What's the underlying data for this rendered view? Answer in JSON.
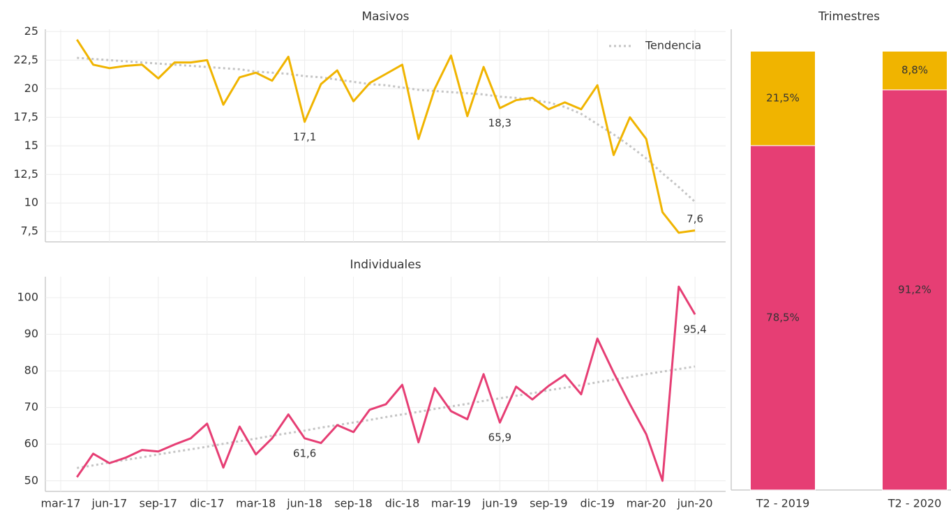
{
  "chart_data": [
    {
      "type": "line",
      "title": "Masivos",
      "ylim": [
        6.6,
        25.2
      ],
      "yticks": [
        {
          "value": 7.5,
          "label": "7,5"
        },
        10,
        {
          "value": 12.5,
          "label": "12,5"
        },
        15,
        {
          "value": 17.5,
          "label": "17,5"
        },
        20,
        {
          "value": 22.5,
          "label": "22,5"
        },
        25
      ],
      "grid": true,
      "legend": "upper right",
      "series": [
        {
          "name": "Tendencia",
          "color": "#c4c4c4",
          "style": "dotted",
          "values": [
            null,
            22.7,
            22.6,
            22.5,
            22.4,
            22.3,
            22.2,
            22.1,
            22.0,
            21.9,
            21.8,
            21.7,
            21.5,
            21.4,
            21.3,
            21.1,
            21.0,
            20.8,
            20.6,
            20.4,
            20.3,
            20.1,
            19.9,
            19.8,
            19.7,
            19.6,
            19.5,
            19.3,
            19.2,
            19.0,
            18.8,
            18.4,
            17.8,
            16.9,
            16.0,
            15.0,
            13.9,
            12.6,
            11.4,
            10.1
          ]
        },
        {
          "color": "#f0b400",
          "values": [
            null,
            24.3,
            22.1,
            21.8,
            22.0,
            22.1,
            20.9,
            22.3,
            22.3,
            22.5,
            18.6,
            21.0,
            21.4,
            20.7,
            22.8,
            17.1,
            20.4,
            21.6,
            18.9,
            20.5,
            21.3,
            22.1,
            15.6,
            20.0,
            22.9,
            17.6,
            21.9,
            18.3,
            19.0,
            19.2,
            18.2,
            18.8,
            18.2,
            20.3,
            14.2,
            17.5,
            15.6,
            9.2,
            7.4,
            7.6
          ],
          "value_labels": [
            null,
            null,
            null,
            null,
            null,
            null,
            null,
            null,
            null,
            null,
            null,
            null,
            null,
            null,
            null,
            "17,1",
            null,
            null,
            null,
            null,
            null,
            null,
            null,
            null,
            null,
            null,
            null,
            "18,3",
            null,
            null,
            null,
            null,
            null,
            null,
            null,
            null,
            null,
            null,
            null,
            "7,6"
          ]
        }
      ]
    },
    {
      "type": "line",
      "title": "Individuales",
      "ylim": [
        47.1,
        105.7
      ],
      "yticks": [
        50,
        60,
        70,
        80,
        90,
        100
      ],
      "grid": true,
      "categories": [
        "mar-17",
        null,
        null,
        "jun-17",
        null,
        null,
        "sep-17",
        null,
        null,
        "dic-17",
        null,
        null,
        "mar-18",
        null,
        null,
        "jun-18",
        null,
        null,
        "sep-18",
        null,
        null,
        "dic-18",
        null,
        null,
        "mar-19",
        null,
        null,
        "jun-19",
        null,
        null,
        "sep-19",
        null,
        null,
        "dic-19",
        null,
        null,
        "mar-20",
        null,
        null,
        "jun-20"
      ],
      "series": [
        {
          "color": "#c4c4c4",
          "style": "dotted",
          "values": [
            null,
            53.5,
            54.2,
            55.0,
            55.7,
            56.4,
            57.2,
            57.9,
            58.6,
            59.3,
            60.1,
            60.8,
            61.5,
            62.3,
            63.0,
            63.7,
            64.5,
            65.2,
            65.9,
            66.6,
            67.4,
            68.1,
            68.8,
            69.6,
            70.3,
            71.0,
            71.8,
            72.5,
            73.2,
            73.9,
            74.7,
            75.4,
            76.1,
            76.9,
            77.6,
            78.3,
            79.1,
            79.8,
            80.5,
            81.2
          ]
        },
        {
          "color": "#e63e74",
          "values": [
            null,
            51.0,
            57.4,
            54.8,
            56.3,
            58.4,
            58.0,
            59.9,
            61.6,
            65.6,
            53.6,
            64.8,
            57.2,
            61.6,
            68.1,
            61.6,
            60.3,
            65.2,
            63.3,
            69.4,
            70.9,
            76.2,
            60.5,
            75.3,
            69.0,
            66.8,
            79.1,
            65.9,
            75.7,
            72.2,
            75.9,
            78.9,
            73.6,
            88.8,
            79.5,
            70.9,
            62.7,
            50.0,
            103.0,
            95.4
          ],
          "value_labels": [
            null,
            null,
            null,
            null,
            null,
            null,
            null,
            null,
            null,
            null,
            null,
            null,
            null,
            null,
            null,
            "61,6",
            null,
            null,
            null,
            null,
            null,
            null,
            null,
            null,
            null,
            null,
            null,
            "65,9",
            null,
            null,
            null,
            null,
            null,
            null,
            null,
            null,
            null,
            null,
            null,
            "95,4"
          ]
        }
      ]
    },
    {
      "type": "stacked-bar",
      "title": "Trimestres",
      "categories": [
        "T2 - 2019",
        "T2 - 2020"
      ],
      "ylim": [
        0,
        105
      ],
      "series": [
        {
          "color": "#e63e74",
          "values": [
            78.5,
            91.2
          ],
          "value_labels": [
            "78,5%",
            "91,2%"
          ]
        },
        {
          "color": "#f0b400",
          "values": [
            21.5,
            8.8
          ],
          "value_labels": [
            "21,5%",
            "8,8%"
          ]
        }
      ]
    }
  ]
}
